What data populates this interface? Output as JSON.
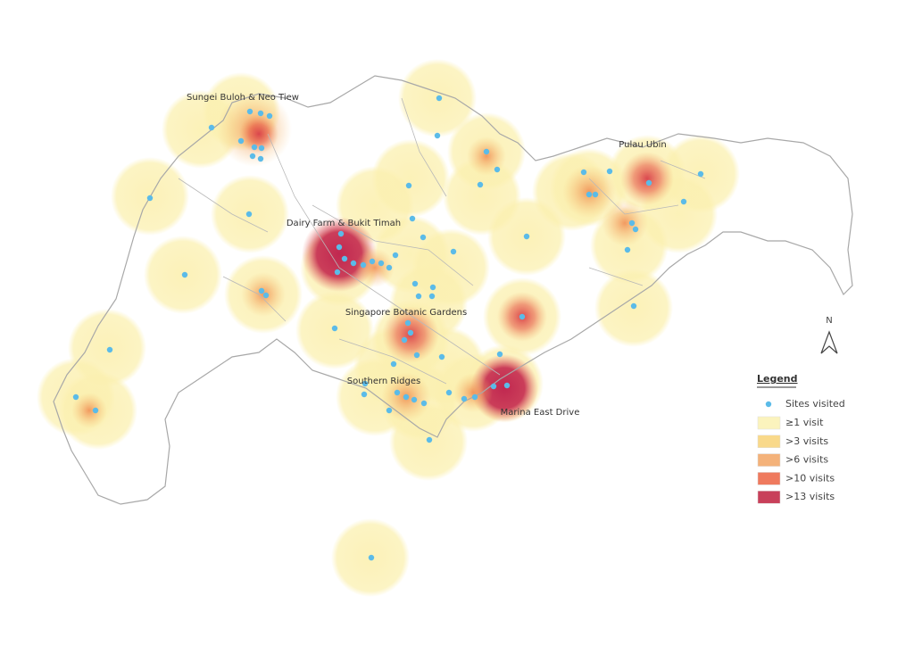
{
  "map": {
    "labels": [
      "Sungei Buloh & Neo Tiew",
      "Dairy Farm & Bukit Timah",
      "Singapore Botanic Gardens",
      "Southern Ridges",
      "Marina East Drive",
      "Pulau Ubin"
    ],
    "north": "N",
    "legend": {
      "title": "Legend",
      "points": {
        "label": "Sites visited",
        "color": "#5bbbe8"
      },
      "items": [
        {
          "label": "≥1 visit",
          "color": "#fbf3bd"
        },
        {
          "label": ">3 visits",
          "color": "#f9d98a"
        },
        {
          "label": ">6 visits",
          "color": "#f4b27a"
        },
        {
          "label": ">10 visits",
          "color": "#ef7a5e"
        },
        {
          "label": ">13 visits",
          "color": "#c8405a"
        }
      ]
    }
  }
}
